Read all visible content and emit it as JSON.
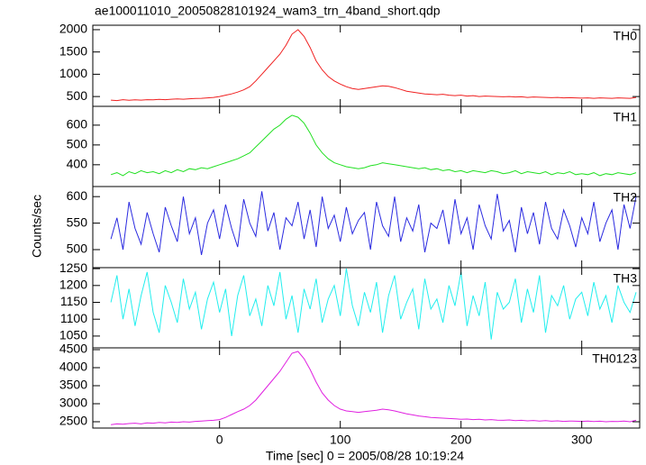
{
  "figure": {
    "title": "ae100011010_20050828101924_wam3_trn_4band_short.qdp",
    "x_label": "Time [sec] 0 = 2005/08/28 10:19:24",
    "y_label": "Counts/sec",
    "xlim": [
      -105,
      348
    ],
    "xticks": [
      0,
      100,
      200,
      300
    ],
    "x": [
      -90,
      -85,
      -80,
      -75,
      -70,
      -65,
      -60,
      -55,
      -50,
      -45,
      -40,
      -35,
      -30,
      -25,
      -20,
      -15,
      -10,
      -5,
      0,
      5,
      10,
      15,
      20,
      25,
      30,
      35,
      40,
      45,
      50,
      55,
      60,
      65,
      70,
      75,
      80,
      85,
      90,
      95,
      100,
      105,
      110,
      115,
      120,
      125,
      130,
      135,
      140,
      145,
      150,
      155,
      160,
      165,
      170,
      175,
      180,
      185,
      190,
      195,
      200,
      205,
      210,
      215,
      220,
      225,
      230,
      235,
      240,
      245,
      250,
      255,
      260,
      265,
      270,
      275,
      280,
      285,
      290,
      295,
      300,
      305,
      310,
      315,
      320,
      325,
      330,
      335,
      340,
      345
    ]
  },
  "chart_data": [
    {
      "type": "line",
      "ylim": [
        280,
        2100
      ],
      "yticks": [
        500,
        1000,
        1500,
        2000
      ],
      "series": [
        {
          "name": "TH0",
          "color": "#f02020",
          "values": [
            420,
            410,
            430,
            415,
            425,
            420,
            430,
            425,
            435,
            430,
            440,
            445,
            440,
            450,
            455,
            460,
            470,
            480,
            500,
            530,
            560,
            600,
            650,
            720,
            850,
            1000,
            1150,
            1300,
            1450,
            1650,
            1900,
            2000,
            1850,
            1600,
            1300,
            1100,
            950,
            850,
            780,
            720,
            680,
            660,
            680,
            700,
            720,
            740,
            730,
            700,
            660,
            620,
            600,
            580,
            560,
            550,
            540,
            550,
            530,
            520,
            530,
            510,
            520,
            500,
            510,
            505,
            500,
            495,
            500,
            490,
            495,
            480,
            490,
            485,
            480,
            475,
            480,
            470,
            475,
            470,
            465,
            470,
            460,
            470,
            465,
            460,
            470,
            465,
            460,
            480
          ]
        }
      ]
    },
    {
      "type": "line",
      "ylim": [
        290,
        695
      ],
      "yticks": [
        400,
        500,
        600
      ],
      "series": [
        {
          "name": "TH1",
          "color": "#22e022",
          "values": [
            350,
            360,
            345,
            365,
            355,
            370,
            360,
            365,
            355,
            370,
            360,
            375,
            365,
            380,
            375,
            385,
            380,
            390,
            400,
            410,
            420,
            430,
            445,
            460,
            490,
            520,
            550,
            580,
            600,
            630,
            650,
            640,
            610,
            560,
            500,
            460,
            430,
            410,
            400,
            390,
            385,
            380,
            385,
            395,
            400,
            410,
            405,
            400,
            395,
            390,
            385,
            380,
            385,
            375,
            380,
            370,
            375,
            365,
            370,
            360,
            370,
            365,
            360,
            370,
            365,
            355,
            360,
            370,
            355,
            365,
            360,
            355,
            365,
            350,
            360,
            355,
            365,
            350,
            355,
            350,
            360,
            345,
            355,
            350,
            360,
            355,
            350,
            360
          ]
        }
      ]
    },
    {
      "type": "line",
      "ylim": [
        466,
        619
      ],
      "yticks": [
        500,
        550,
        600
      ],
      "series": [
        {
          "name": "TH2",
          "color": "#2a2ae0",
          "values": [
            520,
            560,
            500,
            590,
            540,
            510,
            570,
            530,
            495,
            580,
            545,
            515,
            600,
            530,
            560,
            490,
            550,
            575,
            520,
            585,
            540,
            505,
            595,
            550,
            525,
            610,
            535,
            570,
            500,
            560,
            545,
            590,
            520,
            575,
            505,
            600,
            540,
            565,
            515,
            580,
            530,
            555,
            570,
            500,
            590,
            545,
            525,
            600,
            515,
            560,
            535,
            585,
            495,
            550,
            540,
            575,
            510,
            595,
            530,
            560,
            500,
            585,
            545,
            520,
            605,
            535,
            555,
            495,
            580,
            530,
            570,
            510,
            590,
            540,
            520,
            575,
            545,
            505,
            560,
            530,
            590,
            515,
            550,
            575,
            500,
            585,
            540,
            600
          ]
        }
      ]
    },
    {
      "type": "line",
      "ylim": [
        1015,
        1253
      ],
      "yticks": [
        1050,
        1100,
        1150,
        1200,
        1250
      ],
      "series": [
        {
          "name": "TH3",
          "color": "#22eeee",
          "values": [
            1150,
            1230,
            1100,
            1190,
            1080,
            1170,
            1240,
            1120,
            1060,
            1200,
            1150,
            1090,
            1220,
            1130,
            1180,
            1070,
            1160,
            1210,
            1120,
            1190,
            1050,
            1170,
            1230,
            1110,
            1160,
            1080,
            1200,
            1140,
            1240,
            1100,
            1170,
            1060,
            1190,
            1130,
            1220,
            1090,
            1160,
            1200,
            1110,
            1250,
            1140,
            1080,
            1180,
            1120,
            1210,
            1060,
            1170,
            1230,
            1100,
            1150,
            1190,
            1070,
            1220,
            1130,
            1160,
            1090,
            1200,
            1140,
            1240,
            1080,
            1170,
            1110,
            1210,
            1040,
            1180,
            1130,
            1150,
            1220,
            1090,
            1190,
            1120,
            1230,
            1060,
            1170,
            1140,
            1200,
            1100,
            1160,
            1180,
            1110,
            1210,
            1130,
            1170,
            1090,
            1200,
            1150,
            1120,
            1180
          ]
        }
      ]
    },
    {
      "type": "line",
      "ylim": [
        2325,
        4550
      ],
      "yticks": [
        2500,
        3000,
        3500,
        4000,
        4500
      ],
      "series": [
        {
          "name": "TH0123",
          "color": "#e020e0",
          "values": [
            2420,
            2440,
            2430,
            2450,
            2460,
            2440,
            2470,
            2460,
            2480,
            2470,
            2490,
            2480,
            2500,
            2490,
            2510,
            2520,
            2530,
            2540,
            2560,
            2620,
            2700,
            2780,
            2850,
            2950,
            3100,
            3300,
            3500,
            3700,
            3900,
            4150,
            4400,
            4450,
            4250,
            3950,
            3600,
            3300,
            3100,
            2950,
            2850,
            2800,
            2780,
            2760,
            2780,
            2800,
            2820,
            2850,
            2830,
            2800,
            2760,
            2720,
            2690,
            2660,
            2640,
            2620,
            2610,
            2600,
            2590,
            2580,
            2570,
            2575,
            2560,
            2570,
            2550,
            2560,
            2545,
            2540,
            2550,
            2530,
            2540,
            2525,
            2535,
            2520,
            2530,
            2515,
            2525,
            2510,
            2520,
            2515,
            2510,
            2520,
            2505,
            2515,
            2500,
            2510,
            2505,
            2520,
            2500,
            2540
          ]
        }
      ]
    }
  ]
}
